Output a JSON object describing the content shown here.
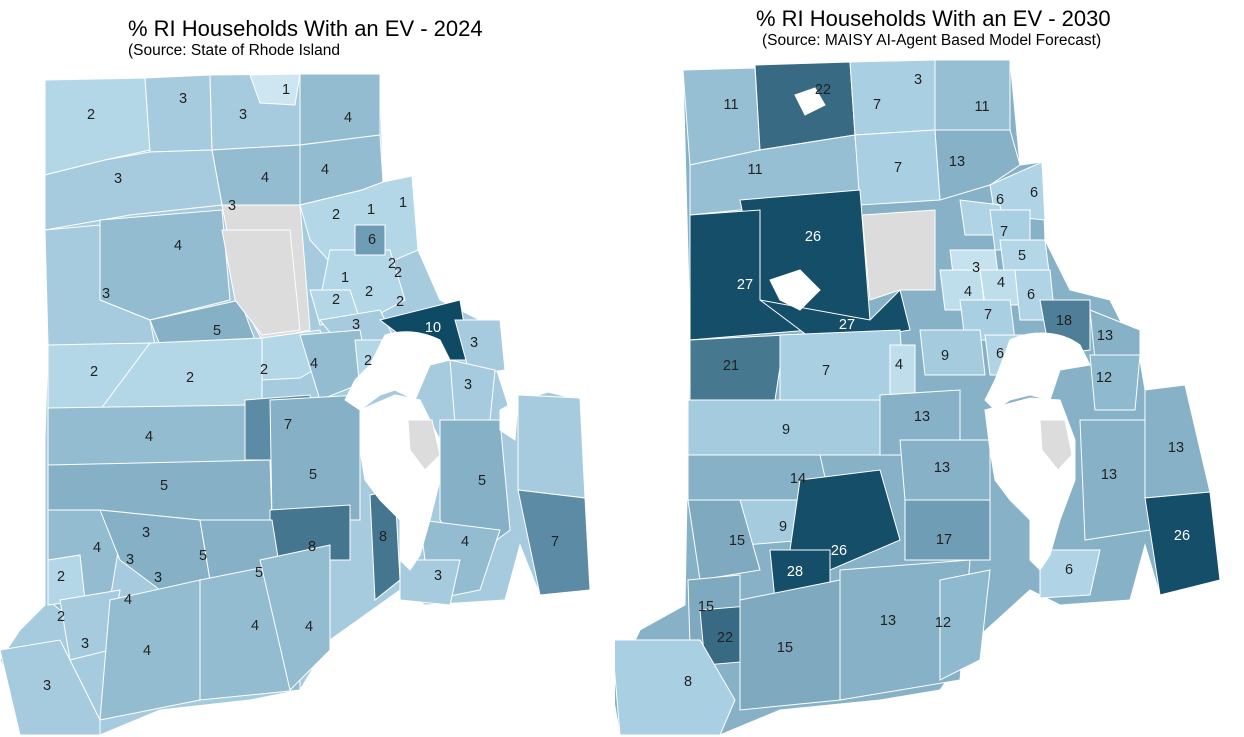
{
  "colors": {
    "scale": {
      "1": "#cde6f2",
      "2": "#b4d7e7",
      "3": "#a6cbde",
      "4": "#94bcd1",
      "5": "#85b0c6",
      "6": "#6f9db5",
      "7": "#5b8ba5",
      "8": "#44768f",
      "9": "#a2c6da",
      "10": "#0f4a65"
    },
    "scale2030": {
      "3": "#c7e2ef",
      "4": "#bfdeec",
      "5": "#b4d7e8",
      "6": "#b0d4e6",
      "7": "#a9cfe2",
      "8": "#a9cfe2",
      "9": "#a4cbde",
      "11": "#96bfd3",
      "12": "#8fb9ce",
      "13": "#86b1c7",
      "14": "#86b1c7",
      "15": "#7ea9bf",
      "17": "#6f9db5",
      "18": "#4f7f98",
      "21": "#46788f",
      "22": "#386b83",
      "26": "#154e68",
      "27": "#154e68",
      "28": "#154e68"
    },
    "no_data": "#dcdcdc",
    "border": "#ffffff",
    "water": "#ffffff"
  },
  "map2024": {
    "title": "% RI Households With an EV - 2024",
    "subtitle": "(Source:  State of Rhode Island",
    "labels": [
      "2",
      "3",
      "3",
      "1",
      "4",
      "3",
      "4",
      "4",
      "3",
      "2",
      "1",
      "1",
      "6",
      "4",
      "2",
      "2",
      "1",
      "2",
      "2",
      "3",
      "2",
      "5",
      "3",
      "10",
      "3",
      "2",
      "2",
      "4",
      "2",
      "2",
      "3",
      "4",
      "7",
      "5",
      "5",
      "5",
      "3",
      "4",
      "3",
      "3",
      "5",
      "2",
      "4",
      "8",
      "8",
      "5",
      "3",
      "4",
      "7",
      "2",
      "3",
      "4",
      "4",
      "4",
      "3"
    ]
  },
  "map2030": {
    "title": "% RI Households With an EV - 2030",
    "subtitle": "(Source: MAISY AI-Agent Based Model Forecast)",
    "labels": [
      "11",
      "22",
      "3",
      "7",
      "11",
      "11",
      "7",
      "13",
      "6",
      "6",
      "26",
      "7",
      "3",
      "5",
      "27",
      "4",
      "4",
      "6",
      "27",
      "7",
      "18",
      "13",
      "9",
      "6",
      "21",
      "7",
      "4",
      "12",
      "9",
      "13",
      "13",
      "13",
      "13",
      "14",
      "9",
      "15",
      "26",
      "17",
      "28",
      "26",
      "15",
      "13",
      "12",
      "22",
      "15",
      "8",
      "6"
    ]
  }
}
